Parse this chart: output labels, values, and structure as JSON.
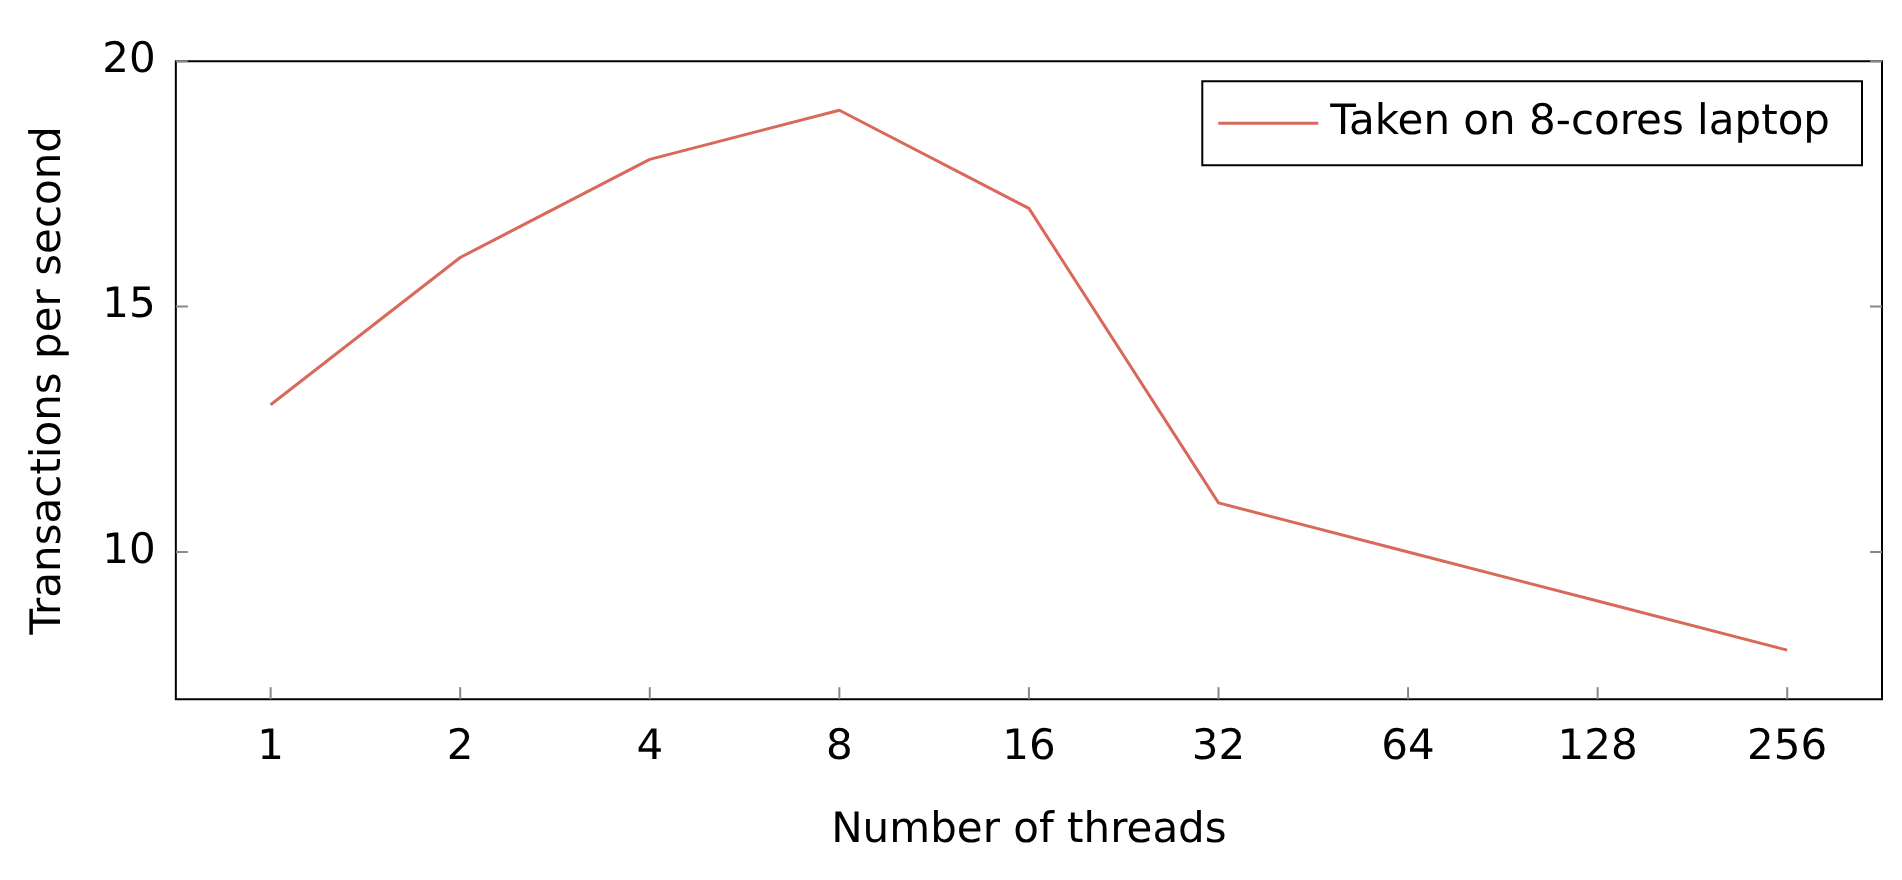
{
  "chart_data": {
    "type": "line",
    "xlabel": "Number of threads",
    "ylabel": "Transactions per second",
    "categories": [
      "1",
      "2",
      "4",
      "8",
      "16",
      "32",
      "64",
      "128",
      "256"
    ],
    "series": [
      {
        "name": "Taken on 8-cores laptop",
        "color": "#d9695a",
        "values": [
          13,
          16,
          18,
          19,
          17,
          11,
          10,
          9,
          8
        ]
      }
    ],
    "ylim": [
      7,
      20
    ],
    "yticks": [
      10,
      15,
      20
    ],
    "grid": false,
    "legend": "top right",
    "marker": "none",
    "line_style": "solid"
  }
}
